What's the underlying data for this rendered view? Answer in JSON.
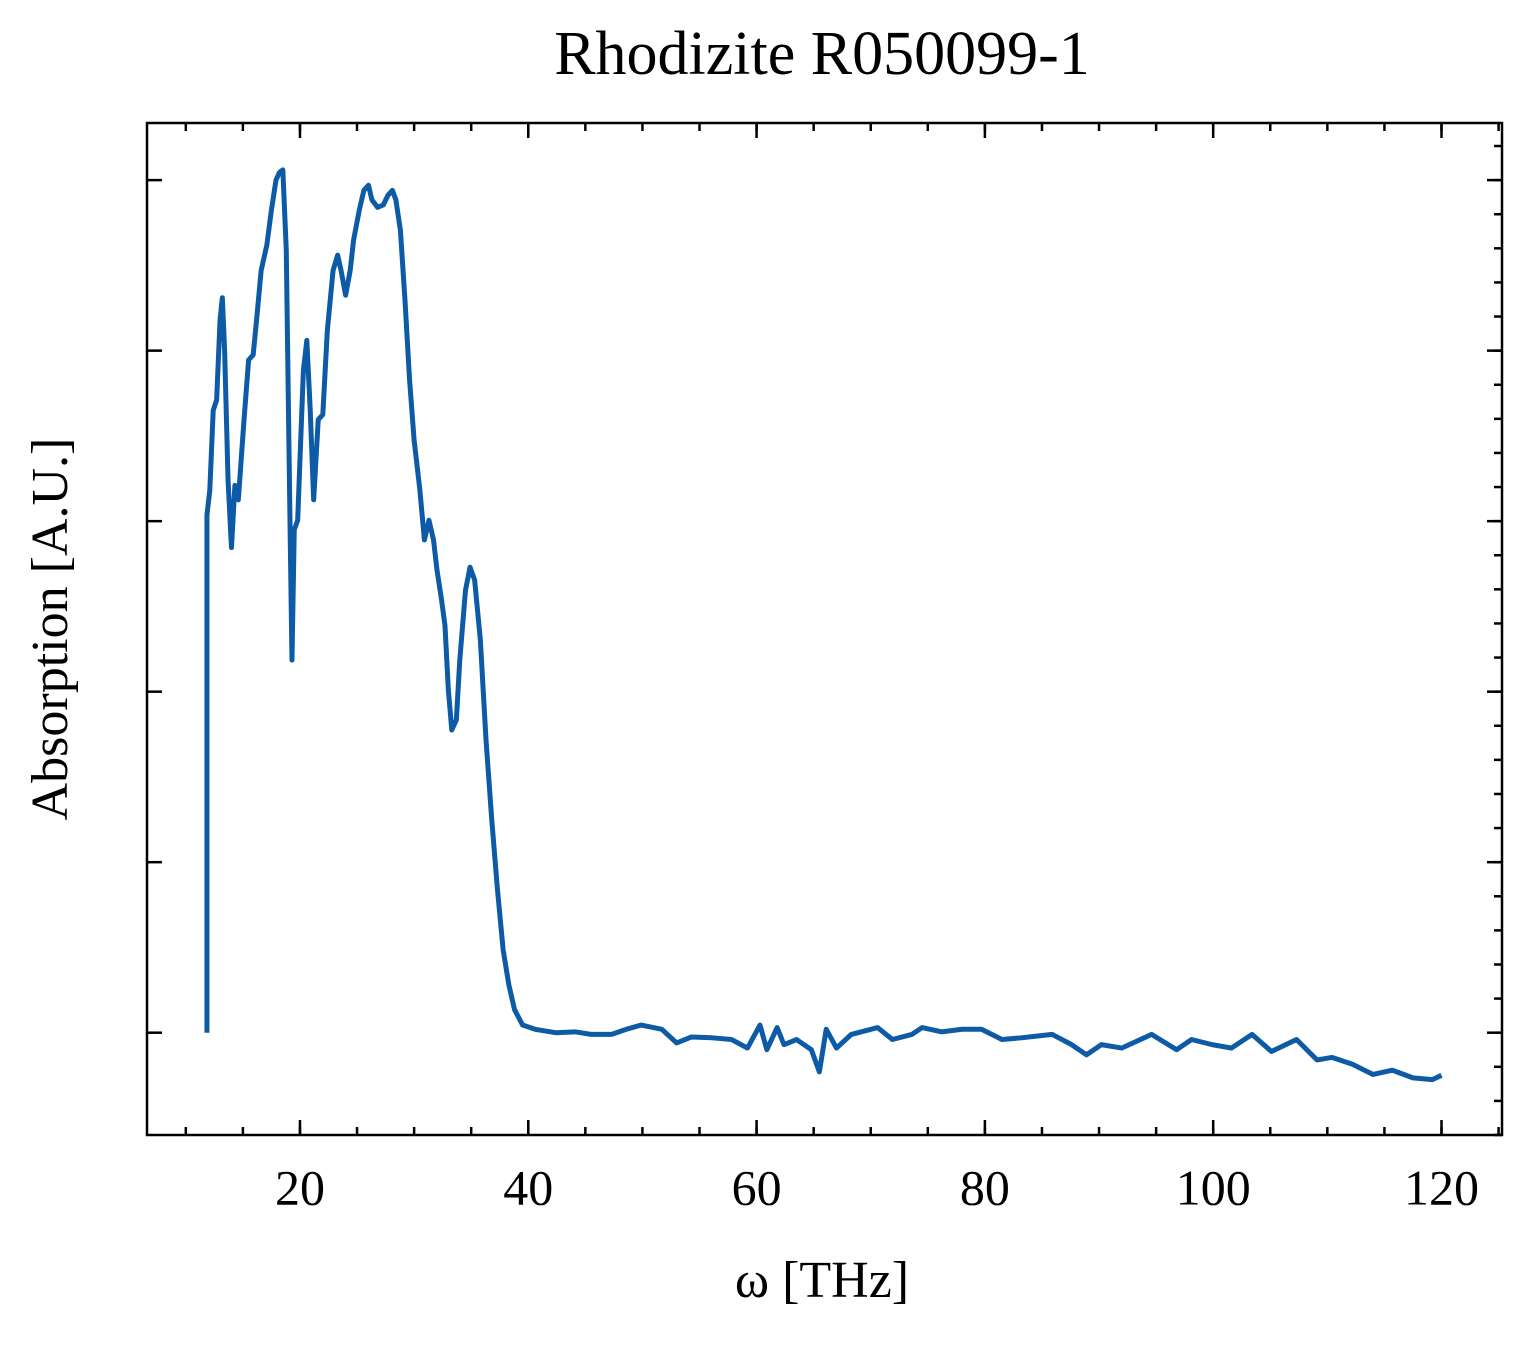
{
  "chart_data": {
    "type": "line",
    "title": "Rhodizite R050099-1",
    "x_label": "ω [THz]",
    "y_label": "Absorption [A.U.]",
    "xlim": [
      6.6,
      125.3
    ],
    "xticks": [
      20,
      40,
      60,
      80,
      100,
      120
    ],
    "ylim": [
      -0.12,
      1.067
    ],
    "yticks": [
      0,
      0.2,
      0.4,
      0.6,
      0.8,
      1.0
    ],
    "series": [
      {
        "name": "Rhodizite R050099-1",
        "color": "#0d5ba6",
        "x": [
          11.85,
          11.85,
          12.1,
          12.4,
          12.7,
          13.0,
          13.2,
          13.4,
          13.7,
          14.0,
          14.3,
          14.6,
          15.1,
          15.5,
          15.9,
          16.2,
          16.6,
          17.1,
          17.5,
          17.9,
          18.2,
          18.5,
          18.8,
          19.1,
          19.3,
          19.5,
          19.8,
          20.0,
          20.3,
          20.6,
          20.9,
          21.2,
          21.6,
          22.0,
          22.4,
          22.9,
          23.3,
          23.6,
          24.0,
          24.4,
          24.7,
          25.2,
          25.6,
          26.0,
          26.3,
          26.8,
          27.3,
          27.7,
          28.1,
          28.4,
          28.8,
          29.2,
          29.6,
          30.0,
          30.5,
          30.9,
          31.3,
          31.7,
          32.0,
          32.4,
          32.7,
          33.0,
          33.3,
          33.7,
          34.0,
          34.5,
          34.9,
          35.3,
          35.8,
          36.3,
          36.8,
          37.3,
          37.8,
          38.3,
          38.8,
          39.5,
          40.6,
          42.4,
          44.1,
          45.5,
          47.3,
          48.6,
          49.9,
          51.7,
          53.0,
          54.3,
          56.1,
          57.8,
          59.2,
          60.3,
          60.9,
          61.8,
          62.4,
          63.5,
          64.8,
          65.5,
          66.1,
          67.0,
          68.3,
          70.6,
          71.9,
          73.6,
          74.5,
          76.2,
          78.0,
          79.7,
          81.5,
          83.2,
          85.9,
          87.6,
          88.9,
          90.2,
          92.0,
          94.6,
          96.8,
          98.1,
          99.9,
          101.6,
          103.4,
          105.1,
          107.3,
          109.1,
          110.4,
          112.2,
          114.0,
          115.7,
          117.5,
          119.2,
          120.0
        ],
        "values": [
          0.0,
          0.607,
          0.636,
          0.73,
          0.742,
          0.836,
          0.862,
          0.8,
          0.648,
          0.569,
          0.642,
          0.625,
          0.719,
          0.789,
          0.795,
          0.836,
          0.894,
          0.924,
          0.965,
          1.0,
          1.009,
          1.012,
          0.918,
          0.625,
          0.437,
          0.59,
          0.601,
          0.672,
          0.777,
          0.812,
          0.73,
          0.625,
          0.719,
          0.725,
          0.824,
          0.894,
          0.912,
          0.894,
          0.865,
          0.894,
          0.93,
          0.965,
          0.988,
          0.994,
          0.977,
          0.968,
          0.971,
          0.982,
          0.988,
          0.977,
          0.941,
          0.859,
          0.766,
          0.695,
          0.637,
          0.578,
          0.601,
          0.578,
          0.543,
          0.508,
          0.478,
          0.402,
          0.355,
          0.367,
          0.437,
          0.519,
          0.546,
          0.531,
          0.461,
          0.343,
          0.25,
          0.168,
          0.097,
          0.056,
          0.027,
          0.009,
          0.004,
          0.0,
          0.001,
          -0.002,
          -0.002,
          0.004,
          0.009,
          0.004,
          -0.012,
          -0.005,
          -0.006,
          -0.008,
          -0.018,
          0.009,
          -0.02,
          0.006,
          -0.014,
          -0.008,
          -0.02,
          -0.046,
          0.004,
          -0.018,
          -0.002,
          0.006,
          -0.008,
          -0.002,
          0.006,
          0.001,
          0.004,
          0.004,
          -0.008,
          -0.006,
          -0.002,
          -0.014,
          -0.026,
          -0.014,
          -0.018,
          -0.002,
          -0.02,
          -0.008,
          -0.014,
          -0.018,
          -0.002,
          -0.022,
          -0.008,
          -0.032,
          -0.029,
          -0.037,
          -0.049,
          -0.044,
          -0.053,
          -0.055,
          -0.05
        ]
      }
    ]
  }
}
